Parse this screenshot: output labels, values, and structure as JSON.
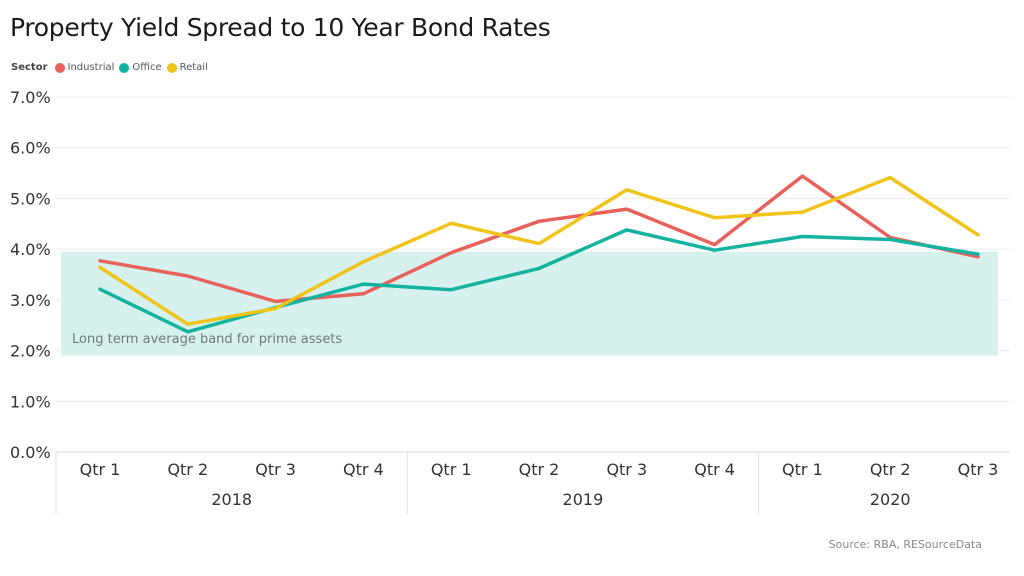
{
  "title": "Property Yield Spread to 10 Year Bond Rates",
  "source": "Source: RBA, RESourceData",
  "legend": {
    "title": "Sector",
    "items": [
      {
        "label": "Industrial",
        "color": "#e8615a"
      },
      {
        "label": "Office",
        "color": "#13b3a0"
      },
      {
        "label": "Retail",
        "color": "#f0c419"
      }
    ]
  },
  "chart_data": {
    "type": "line",
    "categories": [
      "Qtr 1",
      "Qtr 2",
      "Qtr 3",
      "Qtr 4",
      "Qtr 1",
      "Qtr 2",
      "Qtr 3",
      "Qtr 4",
      "Qtr 1",
      "Qtr 2",
      "Qtr 3"
    ],
    "category_groups": [
      {
        "label": "2018",
        "count": 4
      },
      {
        "label": "2019",
        "count": 4
      },
      {
        "label": "2020",
        "count": 3
      }
    ],
    "ylim": [
      0,
      7
    ],
    "yticks": [
      "0.0%",
      "1.0%",
      "2.0%",
      "3.0%",
      "4.0%",
      "5.0%",
      "6.0%",
      "7.0%"
    ],
    "band": {
      "from": 1.9,
      "to": 3.95,
      "label": "Long term average band for prime assets",
      "color": "#d6f1ee"
    },
    "series": [
      {
        "name": "Industrial",
        "color": "#e8615a",
        "values": [
          3.77,
          3.47,
          2.97,
          3.12,
          3.93,
          4.55,
          4.79,
          4.09,
          5.44,
          4.23,
          3.85
        ]
      },
      {
        "name": "Office",
        "color": "#13b3a0",
        "values": [
          3.21,
          2.37,
          2.85,
          3.31,
          3.2,
          3.62,
          4.38,
          3.98,
          4.25,
          4.19,
          3.9
        ]
      },
      {
        "name": "Retail",
        "color": "#f0c419",
        "values": [
          3.64,
          2.52,
          2.83,
          3.75,
          4.51,
          4.11,
          5.17,
          4.62,
          4.73,
          5.41,
          4.28
        ]
      }
    ],
    "grid": true
  }
}
